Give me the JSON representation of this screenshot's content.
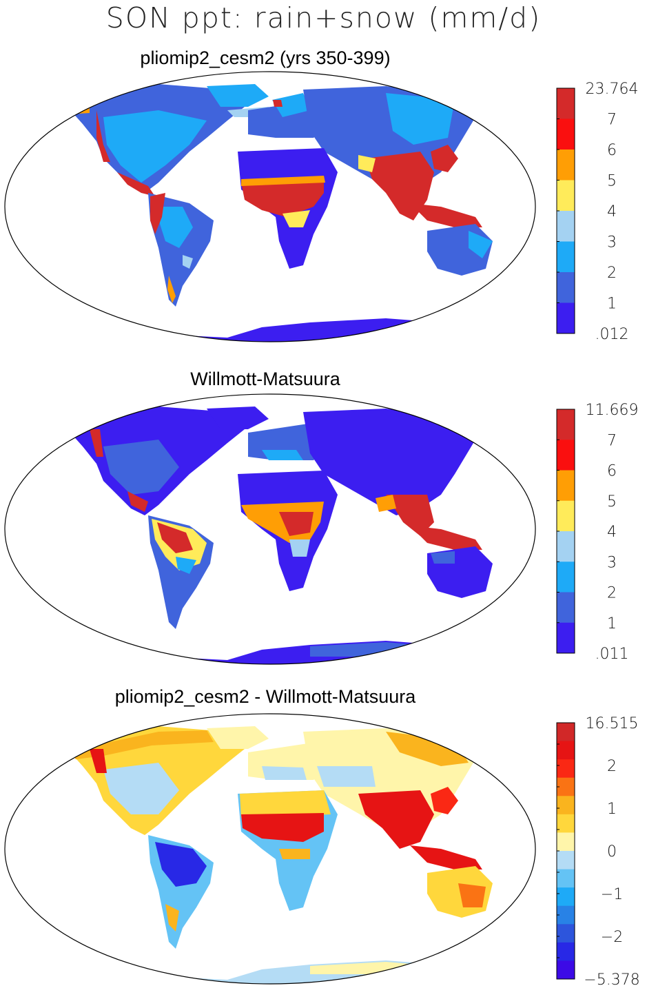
{
  "title": "SON ppt: rain+snow (mm/d)",
  "panels": [
    {
      "id": "model",
      "title": "pliomip2_cesm2 (yrs 350-399)",
      "colorbar": {
        "labels": [
          "23.764",
          "7",
          "6",
          "5",
          "4",
          "3",
          "2",
          "1",
          ".012"
        ],
        "colors": [
          "#d42a2a",
          "#fa0f0f",
          "#ff9e05",
          "#ffeb5a",
          "#a4d2f2",
          "#1eaaf7",
          "#4064dc",
          "#3c1ef0"
        ]
      }
    },
    {
      "id": "obs",
      "title": "Willmott-Matsuura",
      "colorbar": {
        "labels": [
          "11.669",
          "7",
          "6",
          "5",
          "4",
          "3",
          "2",
          "1",
          ".011"
        ],
        "colors": [
          "#d42a2a",
          "#fa0f0f",
          "#ff9e05",
          "#ffeb5a",
          "#a4d2f2",
          "#1eaaf7",
          "#4064dc",
          "#3c1ef0"
        ]
      }
    },
    {
      "id": "diff",
      "title": "pliomip2_cesm2 - Willmott-Matsuura",
      "colorbar": {
        "labels": [
          "16.515",
          "",
          "2",
          "",
          "1",
          "",
          "0",
          "",
          "−1",
          "",
          "−2",
          "",
          "−5.378"
        ],
        "colors": [
          "#d12828",
          "#e61414",
          "#fa2814",
          "#fa7314",
          "#fab41e",
          "#ffd73c",
          "#fff5aa",
          "#b4dcf5",
          "#64c3f5",
          "#1eaaf7",
          "#2882e6",
          "#2d55dc",
          "#2828e6",
          "#3c0ae6"
        ]
      }
    }
  ],
  "chart_data": [
    {
      "type": "heatmap",
      "title": "pliomip2_cesm2 (yrs 350-399)",
      "variable": "SON ppt: rain+snow (mm/d)",
      "colorbar_levels": [
        0.012,
        1,
        2,
        3,
        4,
        5,
        6,
        7,
        23.764
      ],
      "regions": [
        {
          "region": "North America",
          "level_mm_d": "1-3"
        },
        {
          "region": "Amazon",
          "level_mm_d": "1-3"
        },
        {
          "region": "Sahara",
          "level_mm_d": "0-1"
        },
        {
          "region": "Sahel / Central Africa",
          "level_mm_d": "6-23.764"
        },
        {
          "region": "South Asia",
          "level_mm_d": "6-23.764"
        },
        {
          "region": "Siberia",
          "level_mm_d": "0-1"
        },
        {
          "region": "Australia",
          "level_mm_d": "0-2"
        },
        {
          "region": "Antarctica",
          "level_mm_d": "0-1"
        }
      ]
    },
    {
      "type": "heatmap",
      "title": "Willmott-Matsuura",
      "variable": "SON ppt: rain+snow (mm/d)",
      "colorbar_levels": [
        0.011,
        1,
        2,
        3,
        4,
        5,
        6,
        7,
        11.669
      ],
      "regions": [
        {
          "region": "North America",
          "level_mm_d": "0-2"
        },
        {
          "region": "Amazon",
          "level_mm_d": "5-11.669"
        },
        {
          "region": "Sahara",
          "level_mm_d": "0-1"
        },
        {
          "region": "Central Africa",
          "level_mm_d": "5-7"
        },
        {
          "region": "South Asia",
          "level_mm_d": "0-2"
        },
        {
          "region": "Maritime Continent",
          "level_mm_d": "6-11.669"
        },
        {
          "region": "Siberia",
          "level_mm_d": "0-1"
        },
        {
          "region": "Australia",
          "level_mm_d": "0-1"
        },
        {
          "region": "Antarctica",
          "level_mm_d": "0-2"
        }
      ]
    },
    {
      "type": "heatmap",
      "title": "pliomip2_cesm2 - Willmott-Matsuura",
      "variable": "SON ppt: rain+snow (mm/d)",
      "colorbar_levels": [
        -5.378,
        -2,
        -1,
        0,
        1,
        2,
        16.515
      ],
      "regions": [
        {
          "region": "North America",
          "level_mm_d": "0-1"
        },
        {
          "region": "Amazon",
          "level_mm_d": "-5.378 to -2"
        },
        {
          "region": "Sahara",
          "level_mm_d": "0-1"
        },
        {
          "region": "Sahel",
          "level_mm_d": "2-16.515"
        },
        {
          "region": "South Asia",
          "level_mm_d": "2-16.515"
        },
        {
          "region": "Siberia",
          "level_mm_d": "0-1"
        },
        {
          "region": "Australia",
          "level_mm_d": "1-2"
        },
        {
          "region": "Antarctica",
          "level_mm_d": "-1-0"
        }
      ]
    }
  ]
}
